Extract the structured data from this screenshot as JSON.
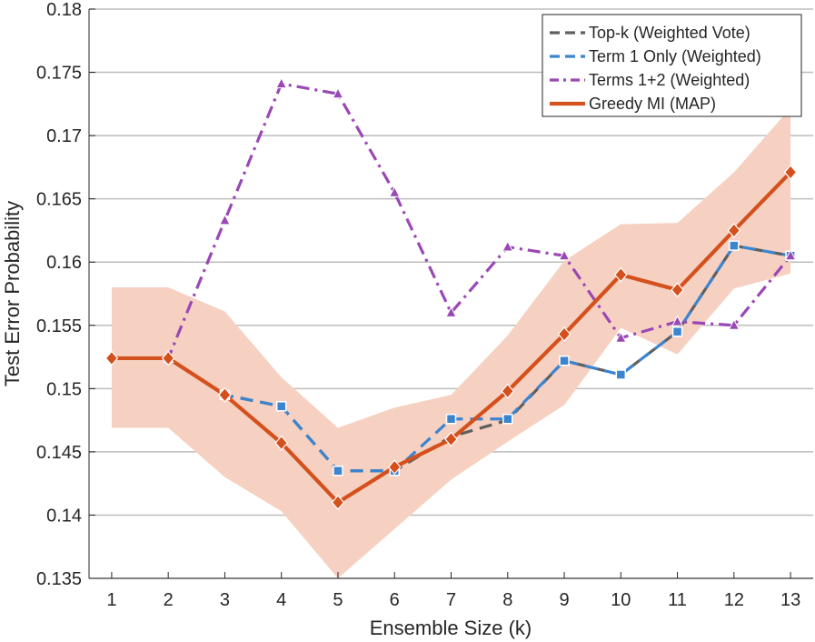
{
  "chart_data": {
    "type": "line",
    "title": "",
    "xlabel": "Ensemble Size (k)",
    "ylabel": "Test Error Probability",
    "xlim": [
      0.6,
      13.4
    ],
    "ylim": [
      0.135,
      0.18
    ],
    "x_ticks": [
      "1",
      "2",
      "3",
      "4",
      "5",
      "6",
      "7",
      "8",
      "9",
      "10",
      "11",
      "12",
      "13"
    ],
    "y_ticks": [
      "0.135",
      "0.14",
      "0.145",
      "0.15",
      "0.155",
      "0.16",
      "0.165",
      "0.17",
      "0.175",
      "0.18"
    ],
    "grid": "horizontal",
    "legend_position": "top-right",
    "x": [
      1,
      2,
      3,
      4,
      5,
      6,
      7,
      8,
      9,
      10,
      11,
      12,
      13
    ],
    "confidence_band": {
      "series": "Greedy MI (MAP)",
      "color": "#f6d1c2",
      "lower": [
        0.1469,
        0.1469,
        0.143,
        0.1403,
        0.135,
        0.1389,
        0.1428,
        0.1458,
        0.1487,
        0.1548,
        0.1527,
        0.1579,
        0.1591
      ],
      "upper": [
        0.158,
        0.158,
        0.1561,
        0.1509,
        0.1469,
        0.1485,
        0.1495,
        0.1542,
        0.1601,
        0.163,
        0.1631,
        0.1671,
        0.1722
      ]
    },
    "series": [
      {
        "name": "Top-k (Weighted Vote)",
        "color": "#5f5f5f",
        "style": "dashed",
        "marker": "none",
        "values": [
          0.1524,
          0.1524,
          0.1495,
          0.1486,
          0.1435,
          0.1435,
          0.1462,
          0.1475,
          0.1522,
          0.1511,
          0.1545,
          0.1613,
          0.1605
        ]
      },
      {
        "name": "Term 1 Only (Weighted)",
        "color": "#3a85d0",
        "style": "dashed",
        "marker": "square",
        "values": [
          0.1524,
          0.1524,
          0.1495,
          0.1486,
          0.1435,
          0.1435,
          0.1476,
          0.1476,
          0.1522,
          0.1511,
          0.1545,
          0.1613,
          0.1605
        ]
      },
      {
        "name": "Terms 1+2 (Weighted)",
        "color": "#9a48b5",
        "style": "dashdot",
        "marker": "triangle",
        "values": [
          0.1524,
          0.1524,
          0.1633,
          0.1741,
          0.1733,
          0.1655,
          0.156,
          0.1612,
          0.1605,
          0.154,
          0.1553,
          0.155,
          0.1605
        ]
      },
      {
        "name": "Greedy MI (MAP)",
        "color": "#d4501c",
        "style": "solid",
        "marker": "diamond",
        "values": [
          0.1524,
          0.1524,
          0.1495,
          0.1457,
          0.141,
          0.1438,
          0.146,
          0.1498,
          0.1543,
          0.159,
          0.1578,
          0.1625,
          0.1671
        ]
      }
    ]
  }
}
